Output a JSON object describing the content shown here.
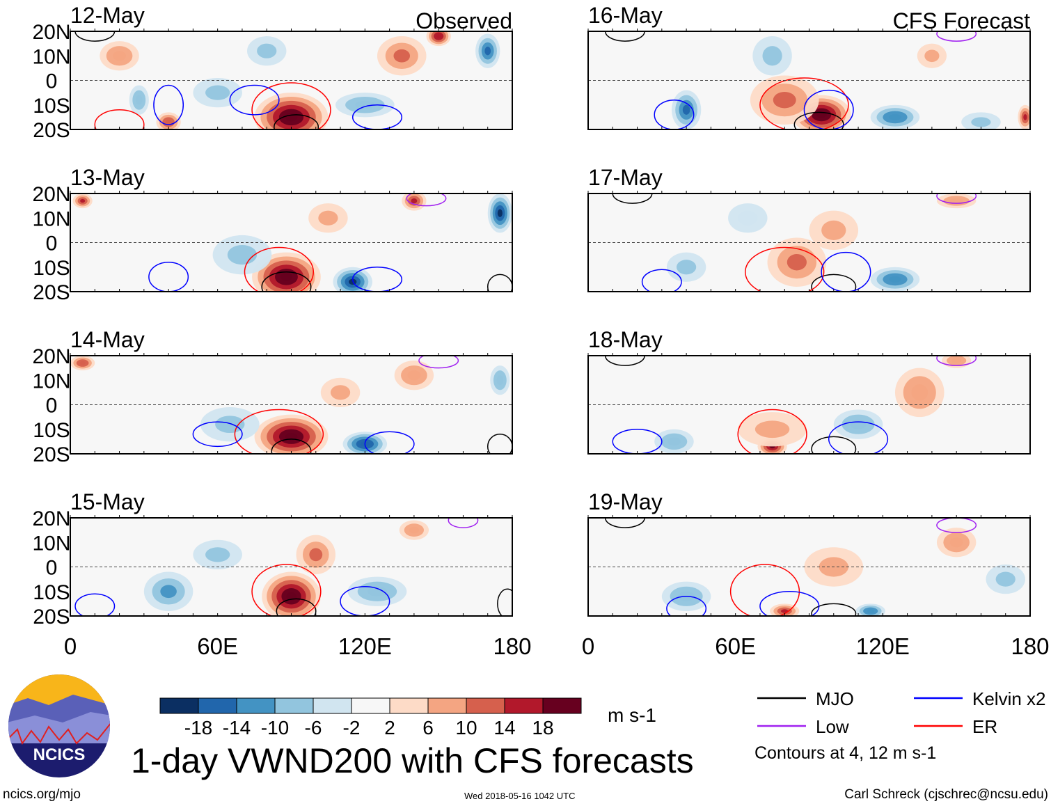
{
  "chart_data": {
    "type": "heatmap",
    "title": "1-day VWND200 with CFS forecasts",
    "units": "m s-1",
    "column_titles": [
      "Observed",
      "CFS Forecast"
    ],
    "x_ticks": [
      "0",
      "60E",
      "120E",
      "180"
    ],
    "x_tick_values": [
      0,
      60,
      120,
      180
    ],
    "y_ticks": [
      "20N",
      "10N",
      "0",
      "10S",
      "20S"
    ],
    "y_tick_values": [
      20,
      10,
      0,
      -10,
      -20
    ],
    "xlim": [
      0,
      180
    ],
    "ylim": [
      -20,
      20
    ],
    "colorbar": {
      "labels": [
        "-18",
        "-14",
        "-10",
        "-6",
        "-2",
        "2",
        "6",
        "10",
        "14",
        "18"
      ],
      "levels": [
        -18,
        -14,
        -10,
        -6,
        -2,
        2,
        6,
        10,
        14,
        18
      ],
      "colors": [
        "#0b2f62",
        "#2166ac",
        "#4393c3",
        "#92c5de",
        "#d1e5f0",
        "#f7f7f7",
        "#fddbc7",
        "#f4a582",
        "#d6604d",
        "#b2182b",
        "#67001f"
      ]
    },
    "legend": {
      "items": [
        {
          "label": "MJO",
          "color": "#000000"
        },
        {
          "label": "Kelvin x2",
          "color": "#0000ff"
        },
        {
          "label": "Low",
          "color": "#a020f0"
        },
        {
          "label": "ER",
          "color": "#ff0000"
        }
      ],
      "note": "Contours at 4, 12 m s-1"
    },
    "panels": [
      {
        "date": "12-May",
        "column": 0,
        "row": 0,
        "label": "Observed",
        "anomalies": [
          [
            90,
            -15,
            22,
            15,
            10
          ],
          [
            135,
            10,
            10,
            10,
            8
          ],
          [
            150,
            18,
            16,
            5,
            4
          ],
          [
            170,
            12,
            -14,
            5,
            7
          ],
          [
            20,
            10,
            8,
            8,
            6
          ],
          [
            40,
            -17,
            12,
            5,
            4
          ],
          [
            120,
            -10,
            -8,
            12,
            5
          ],
          [
            60,
            -5,
            -6,
            10,
            6
          ],
          [
            80,
            12,
            -6,
            8,
            6
          ],
          [
            28,
            -8,
            -8,
            4,
            6
          ]
        ],
        "contours": [
          [
            "MJO",
            92,
            -19,
            9,
            5
          ],
          [
            "MJO",
            10,
            20,
            8,
            4
          ],
          [
            "ER",
            90,
            -12,
            16,
            11
          ],
          [
            "ER",
            20,
            -18,
            10,
            6
          ],
          [
            "Kelvin",
            75,
            -8,
            10,
            6
          ],
          [
            "Kelvin",
            125,
            -15,
            10,
            5
          ],
          [
            "Kelvin",
            40,
            -10,
            6,
            8
          ]
        ]
      },
      {
        "date": "13-May",
        "column": 0,
        "row": 1,
        "anomalies": [
          [
            88,
            -14,
            20,
            14,
            10
          ],
          [
            115,
            -16,
            -18,
            8,
            6
          ],
          [
            175,
            12,
            -18,
            5,
            8
          ],
          [
            140,
            17,
            14,
            5,
            4
          ],
          [
            5,
            17,
            14,
            4,
            3
          ],
          [
            70,
            -5,
            -6,
            12,
            8
          ],
          [
            105,
            10,
            6,
            8,
            6
          ]
        ],
        "contours": [
          [
            "MJO",
            88,
            -18,
            10,
            6
          ],
          [
            "MJO",
            175,
            -18,
            5,
            5
          ],
          [
            "ER",
            85,
            -12,
            14,
            10
          ],
          [
            "Kelvin",
            125,
            -15,
            10,
            5
          ],
          [
            "Kelvin",
            40,
            -14,
            8,
            6
          ],
          [
            "Low",
            145,
            18,
            8,
            3
          ]
        ]
      },
      {
        "date": "14-May",
        "column": 0,
        "row": 2,
        "anomalies": [
          [
            90,
            -13,
            20,
            15,
            9
          ],
          [
            120,
            -16,
            -16,
            9,
            5
          ],
          [
            140,
            12,
            8,
            8,
            6
          ],
          [
            175,
            10,
            -8,
            4,
            6
          ],
          [
            65,
            -8,
            -6,
            12,
            7
          ],
          [
            5,
            17,
            12,
            5,
            3
          ],
          [
            110,
            5,
            6,
            8,
            6
          ]
        ],
        "contours": [
          [
            "MJO",
            90,
            -19,
            8,
            5
          ],
          [
            "MJO",
            175,
            -17,
            5,
            5
          ],
          [
            "ER",
            85,
            -12,
            18,
            10
          ],
          [
            "Kelvin",
            130,
            -16,
            10,
            5
          ],
          [
            "Kelvin",
            60,
            -12,
            10,
            5
          ],
          [
            "Low",
            150,
            18,
            8,
            3
          ]
        ]
      },
      {
        "date": "15-May",
        "column": 0,
        "row": 3,
        "anomalies": [
          [
            90,
            -12,
            22,
            12,
            10
          ],
          [
            40,
            -10,
            -10,
            10,
            8
          ],
          [
            125,
            -10,
            -8,
            12,
            6
          ],
          [
            100,
            5,
            10,
            8,
            8
          ],
          [
            140,
            15,
            8,
            6,
            4
          ],
          [
            60,
            5,
            -6,
            10,
            6
          ]
        ],
        "contours": [
          [
            "MJO",
            92,
            -18,
            8,
            5
          ],
          [
            "MJO",
            178,
            -15,
            4,
            6
          ],
          [
            "ER",
            88,
            -10,
            14,
            11
          ],
          [
            "Kelvin",
            120,
            -14,
            10,
            6
          ],
          [
            "Kelvin",
            10,
            -16,
            8,
            5
          ],
          [
            "Low",
            160,
            19,
            6,
            3
          ]
        ]
      },
      {
        "date": "16-May",
        "column": 1,
        "row": 0,
        "label": "CFS Forecast",
        "anomalies": [
          [
            95,
            -14,
            22,
            12,
            8
          ],
          [
            80,
            -8,
            10,
            14,
            10
          ],
          [
            40,
            -12,
            -14,
            6,
            8
          ],
          [
            125,
            -15,
            -12,
            10,
            5
          ],
          [
            75,
            10,
            -6,
            8,
            8
          ],
          [
            160,
            -17,
            -6,
            8,
            4
          ],
          [
            178,
            -15,
            14,
            3,
            5
          ],
          [
            140,
            10,
            6,
            6,
            5
          ]
        ],
        "contours": [
          [
            "MJO",
            94,
            -18,
            10,
            5
          ],
          [
            "MJO",
            15,
            20,
            8,
            4
          ],
          [
            "ER",
            88,
            -10,
            18,
            11
          ],
          [
            "Kelvin",
            98,
            -12,
            10,
            8
          ],
          [
            "Kelvin",
            35,
            -14,
            8,
            6
          ],
          [
            "Low",
            150,
            19,
            8,
            3
          ]
        ]
      },
      {
        "date": "17-May",
        "column": 1,
        "row": 1,
        "anomalies": [
          [
            85,
            -8,
            10,
            12,
            10
          ],
          [
            100,
            5,
            6,
            10,
            8
          ],
          [
            125,
            -15,
            -12,
            10,
            5
          ],
          [
            40,
            -10,
            -6,
            8,
            6
          ],
          [
            150,
            17,
            8,
            8,
            3
          ],
          [
            65,
            10,
            -4,
            8,
            6
          ]
        ],
        "contours": [
          [
            "MJO",
            100,
            -18,
            9,
            5
          ],
          [
            "MJO",
            18,
            20,
            8,
            4
          ],
          [
            "ER",
            80,
            -12,
            16,
            10
          ],
          [
            "Kelvin",
            105,
            -12,
            10,
            8
          ],
          [
            "Kelvin",
            30,
            -16,
            8,
            5
          ],
          [
            "Low",
            150,
            19,
            8,
            3
          ]
        ]
      },
      {
        "date": "18-May",
        "column": 1,
        "row": 2,
        "anomalies": [
          [
            75,
            -17,
            18,
            6,
            4
          ],
          [
            75,
            -10,
            6,
            14,
            7
          ],
          [
            135,
            5,
            8,
            10,
            10
          ],
          [
            110,
            -8,
            -8,
            10,
            6
          ],
          [
            35,
            -15,
            -8,
            8,
            5
          ],
          [
            150,
            18,
            8,
            6,
            3
          ]
        ],
        "contours": [
          [
            "MJO",
            100,
            -18,
            9,
            5
          ],
          [
            "MJO",
            15,
            20,
            8,
            4
          ],
          [
            "ER",
            75,
            -12,
            14,
            10
          ],
          [
            "Kelvin",
            110,
            -14,
            12,
            7
          ],
          [
            "Kelvin",
            20,
            -15,
            10,
            5
          ],
          [
            "Low",
            150,
            19,
            8,
            3
          ]
        ]
      },
      {
        "date": "19-May",
        "column": 1,
        "row": 3,
        "anomalies": [
          [
            80,
            -18,
            14,
            6,
            3
          ],
          [
            100,
            0,
            6,
            12,
            8
          ],
          [
            150,
            10,
            8,
            8,
            6
          ],
          [
            40,
            -12,
            -8,
            10,
            6
          ],
          [
            115,
            -18,
            -12,
            6,
            3
          ],
          [
            170,
            -5,
            -6,
            8,
            6
          ]
        ],
        "contours": [
          [
            "MJO",
            100,
            -19,
            9,
            4
          ],
          [
            "MJO",
            15,
            20,
            8,
            4
          ],
          [
            "ER",
            72,
            -10,
            14,
            11
          ],
          [
            "Kelvin",
            82,
            -16,
            12,
            6
          ],
          [
            "Kelvin",
            40,
            -17,
            8,
            5
          ],
          [
            "Low",
            150,
            17,
            8,
            3
          ]
        ]
      }
    ]
  },
  "footer": {
    "logo_text": "NCICS",
    "site": "ncics.org/mjo",
    "timestamp": "Wed 2018-05-16 1042 UTC",
    "author": "Carl Schreck (cjschrec@ncsu.edu)"
  }
}
